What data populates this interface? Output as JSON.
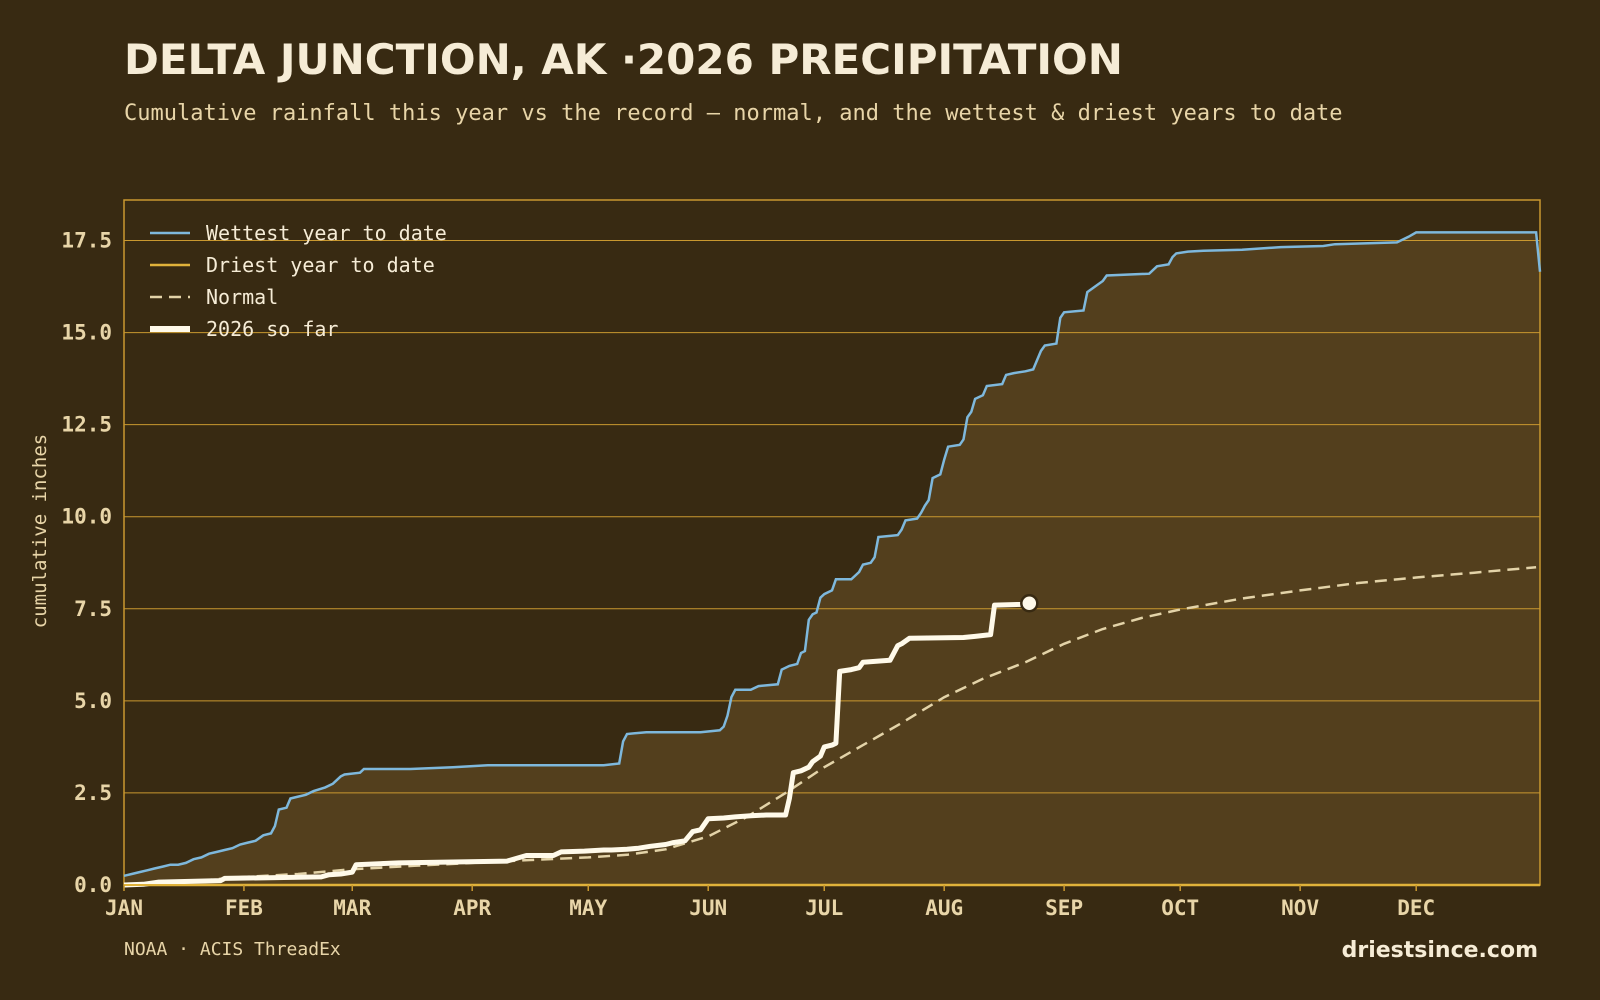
{
  "title": "DELTA JUNCTION, AK ·2026 PRECIPITATION",
  "subtitle": "Cumulative rainfall this year vs the record — normal, and the wettest & driest years to date",
  "footer": {
    "source": "NOAA · ACIS ThreadEx",
    "brand": "driestsince.com"
  },
  "colors": {
    "background": "#382a12",
    "band_fill": "#533f1d",
    "grid": "#c9982f",
    "wettest": "#7eb8dc",
    "driest": "#e0b23a",
    "normal": "#e3d3a8",
    "current": "#fffaea"
  },
  "chart_data": {
    "type": "line",
    "xlabel": "",
    "ylabel": "cumulative inches",
    "ylim": [
      0,
      18.6
    ],
    "xlim": [
      1,
      366
    ],
    "x_unit": "day of year",
    "yticks": [
      "0.0",
      "2.5",
      "5.0",
      "7.5",
      "10.0",
      "12.5",
      "15.0",
      "17.5"
    ],
    "ytick_values": [
      0,
      2.5,
      5,
      7.5,
      10,
      12.5,
      15,
      17.5
    ],
    "xticks": [
      {
        "label": "JAN",
        "day": 1
      },
      {
        "label": "FEB",
        "day": 32
      },
      {
        "label": "MAR",
        "day": 60
      },
      {
        "label": "APR",
        "day": 91
      },
      {
        "label": "MAY",
        "day": 121
      },
      {
        "label": "JUN",
        "day": 152
      },
      {
        "label": "JUL",
        "day": 182
      },
      {
        "label": "AUG",
        "day": 213
      },
      {
        "label": "SEP",
        "day": 244
      },
      {
        "label": "OCT",
        "day": 274
      },
      {
        "label": "NOV",
        "day": 305
      },
      {
        "label": "DEC",
        "day": 335
      }
    ],
    "grid": true,
    "legend": "top-left",
    "series": [
      {
        "name": "Wettest year to date",
        "key": "wettest",
        "style": "solid",
        "points": [
          [
            1,
            0.25
          ],
          [
            3,
            0.3
          ],
          [
            5,
            0.35
          ],
          [
            7,
            0.4
          ],
          [
            9,
            0.45
          ],
          [
            11,
            0.5
          ],
          [
            13,
            0.55
          ],
          [
            15,
            0.55
          ],
          [
            17,
            0.6
          ],
          [
            19,
            0.7
          ],
          [
            21,
            0.75
          ],
          [
            23,
            0.85
          ],
          [
            25,
            0.9
          ],
          [
            27,
            0.95
          ],
          [
            29,
            1.0
          ],
          [
            31,
            1.1
          ],
          [
            33,
            1.15
          ],
          [
            35,
            1.2
          ],
          [
            37,
            1.35
          ],
          [
            39,
            1.4
          ],
          [
            40,
            1.6
          ],
          [
            41,
            2.05
          ],
          [
            43,
            2.1
          ],
          [
            44,
            2.35
          ],
          [
            46,
            2.4
          ],
          [
            48,
            2.45
          ],
          [
            50,
            2.55
          ],
          [
            53,
            2.65
          ],
          [
            55,
            2.75
          ],
          [
            57,
            2.95
          ],
          [
            58,
            3.0
          ],
          [
            62,
            3.05
          ],
          [
            63,
            3.15
          ],
          [
            75,
            3.15
          ],
          [
            86,
            3.2
          ],
          [
            95,
            3.25
          ],
          [
            110,
            3.25
          ],
          [
            125,
            3.25
          ],
          [
            129,
            3.3
          ],
          [
            130,
            3.9
          ],
          [
            131,
            4.1
          ],
          [
            136,
            4.15
          ],
          [
            150,
            4.15
          ],
          [
            155,
            4.2
          ],
          [
            156,
            4.3
          ],
          [
            157,
            4.6
          ],
          [
            158,
            5.1
          ],
          [
            159,
            5.3
          ],
          [
            163,
            5.3
          ],
          [
            165,
            5.4
          ],
          [
            170,
            5.45
          ],
          [
            171,
            5.85
          ],
          [
            173,
            5.95
          ],
          [
            175,
            6.0
          ],
          [
            176,
            6.3
          ],
          [
            177,
            6.35
          ],
          [
            178,
            7.2
          ],
          [
            179,
            7.35
          ],
          [
            180,
            7.4
          ],
          [
            181,
            7.8
          ],
          [
            182,
            7.9
          ],
          [
            184,
            8.0
          ],
          [
            185,
            8.3
          ],
          [
            189,
            8.3
          ],
          [
            191,
            8.5
          ],
          [
            192,
            8.7
          ],
          [
            194,
            8.75
          ],
          [
            195,
            8.9
          ],
          [
            196,
            9.45
          ],
          [
            201,
            9.5
          ],
          [
            202,
            9.65
          ],
          [
            203,
            9.9
          ],
          [
            206,
            9.95
          ],
          [
            207,
            10.1
          ],
          [
            208,
            10.3
          ],
          [
            209,
            10.45
          ],
          [
            210,
            11.05
          ],
          [
            212,
            11.15
          ],
          [
            213,
            11.55
          ],
          [
            214,
            11.9
          ],
          [
            217,
            11.95
          ],
          [
            218,
            12.1
          ],
          [
            219,
            12.7
          ],
          [
            220,
            12.85
          ],
          [
            221,
            13.2
          ],
          [
            223,
            13.3
          ],
          [
            224,
            13.55
          ],
          [
            228,
            13.6
          ],
          [
            229,
            13.85
          ],
          [
            231,
            13.9
          ],
          [
            234,
            13.95
          ],
          [
            236,
            14.0
          ],
          [
            238,
            14.5
          ],
          [
            239,
            14.65
          ],
          [
            242,
            14.7
          ],
          [
            243,
            15.4
          ],
          [
            244,
            15.55
          ],
          [
            249,
            15.6
          ],
          [
            250,
            16.1
          ],
          [
            252,
            16.25
          ],
          [
            254,
            16.4
          ],
          [
            255,
            16.55
          ],
          [
            266,
            16.6
          ],
          [
            268,
            16.8
          ],
          [
            271,
            16.85
          ],
          [
            272,
            17.05
          ],
          [
            273,
            17.15
          ],
          [
            276,
            17.2
          ],
          [
            280,
            17.22
          ],
          [
            290,
            17.25
          ],
          [
            297,
            17.3
          ],
          [
            300,
            17.32
          ],
          [
            311,
            17.35
          ],
          [
            314,
            17.4
          ],
          [
            330,
            17.45
          ],
          [
            333,
            17.6
          ],
          [
            335,
            17.72
          ],
          [
            366,
            17.72
          ],
          [
            367,
            16.65
          ]
        ]
      },
      {
        "name": "Driest year to date",
        "key": "driest",
        "style": "solid",
        "points": [
          [
            1,
            0.0
          ],
          [
            367,
            0.0
          ]
        ]
      },
      {
        "name": "Normal",
        "key": "normal",
        "style": "dashed",
        "points": [
          [
            1,
            0.0
          ],
          [
            15,
            0.07
          ],
          [
            32,
            0.22
          ],
          [
            46,
            0.3
          ],
          [
            60,
            0.43
          ],
          [
            76,
            0.52
          ],
          [
            91,
            0.6
          ],
          [
            106,
            0.68
          ],
          [
            121,
            0.75
          ],
          [
            131,
            0.82
          ],
          [
            141,
            0.97
          ],
          [
            152,
            1.32
          ],
          [
            162,
            1.85
          ],
          [
            172,
            2.5
          ],
          [
            182,
            3.2
          ],
          [
            192,
            3.8
          ],
          [
            202,
            4.4
          ],
          [
            213,
            5.1
          ],
          [
            223,
            5.6
          ],
          [
            234,
            6.05
          ],
          [
            244,
            6.55
          ],
          [
            254,
            6.95
          ],
          [
            264,
            7.25
          ],
          [
            274,
            7.48
          ],
          [
            290,
            7.78
          ],
          [
            305,
            8.0
          ],
          [
            320,
            8.2
          ],
          [
            335,
            8.35
          ],
          [
            350,
            8.48
          ],
          [
            366,
            8.63
          ]
        ]
      },
      {
        "name": "2026 so far",
        "key": "current",
        "style": "solid-thick",
        "points": [
          [
            1,
            0.0
          ],
          [
            6,
            0.02
          ],
          [
            10,
            0.08
          ],
          [
            26,
            0.12
          ],
          [
            27,
            0.18
          ],
          [
            52,
            0.22
          ],
          [
            54,
            0.28
          ],
          [
            57,
            0.3
          ],
          [
            60,
            0.35
          ],
          [
            61,
            0.55
          ],
          [
            72,
            0.6
          ],
          [
            90,
            0.63
          ],
          [
            100,
            0.65
          ],
          [
            105,
            0.8
          ],
          [
            112,
            0.8
          ],
          [
            114,
            0.9
          ],
          [
            120,
            0.92
          ],
          [
            125,
            0.95
          ],
          [
            127,
            0.95
          ],
          [
            131,
            0.97
          ],
          [
            134,
            1.0
          ],
          [
            137,
            1.05
          ],
          [
            141,
            1.1
          ],
          [
            143,
            1.15
          ],
          [
            146,
            1.2
          ],
          [
            148,
            1.45
          ],
          [
            150,
            1.5
          ],
          [
            152,
            1.8
          ],
          [
            156,
            1.82
          ],
          [
            159,
            1.85
          ],
          [
            163,
            1.88
          ],
          [
            167,
            1.9
          ],
          [
            172,
            1.9
          ],
          [
            173,
            2.35
          ],
          [
            174,
            3.05
          ],
          [
            176,
            3.1
          ],
          [
            178,
            3.2
          ],
          [
            179,
            3.35
          ],
          [
            181,
            3.5
          ],
          [
            182,
            3.75
          ],
          [
            184,
            3.8
          ],
          [
            185,
            3.85
          ],
          [
            186,
            5.8
          ],
          [
            189,
            5.85
          ],
          [
            191,
            5.9
          ],
          [
            192,
            6.05
          ],
          [
            199,
            6.1
          ],
          [
            201,
            6.5
          ],
          [
            202,
            6.55
          ],
          [
            204,
            6.7
          ],
          [
            218,
            6.72
          ],
          [
            221,
            6.75
          ],
          [
            225,
            6.8
          ],
          [
            226,
            7.6
          ],
          [
            233,
            7.62
          ],
          [
            235,
            7.65
          ]
        ]
      }
    ],
    "end_marker": {
      "day": 235,
      "value": 7.65
    }
  }
}
